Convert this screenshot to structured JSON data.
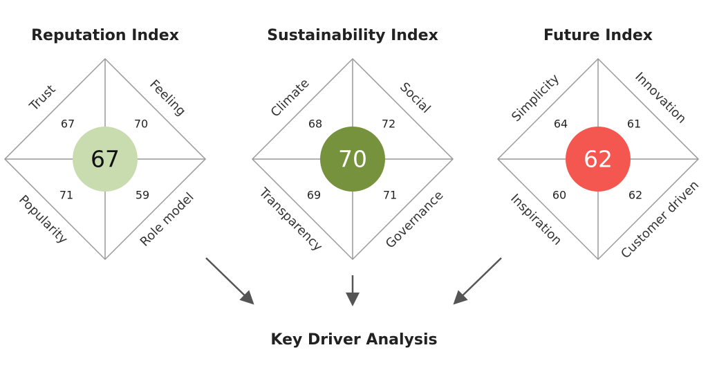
{
  "indices": [
    {
      "title": "Reputation Index",
      "score": 67,
      "quadrants": [
        {
          "label": "Trust",
          "value": 67
        },
        {
          "label": "Feeling",
          "value": 70
        },
        {
          "label": "Popularity",
          "value": 71
        },
        {
          "label": "Role model",
          "value": 59
        }
      ]
    },
    {
      "title": "Sustainability Index",
      "score": 70,
      "quadrants": [
        {
          "label": "Climate",
          "value": 68
        },
        {
          "label": "Social",
          "value": 72
        },
        {
          "label": "Transparency",
          "value": 69
        },
        {
          "label": "Governance",
          "value": 71
        }
      ]
    },
    {
      "title": "Future Index",
      "score": 62,
      "quadrants": [
        {
          "label": "Simplicity",
          "value": 64
        },
        {
          "label": "Innovation",
          "value": 61
        },
        {
          "label": "Inspiration",
          "value": 60
        },
        {
          "label": "Customer driven",
          "value": 62
        }
      ]
    }
  ],
  "footer": "Key Driver Analysis"
}
